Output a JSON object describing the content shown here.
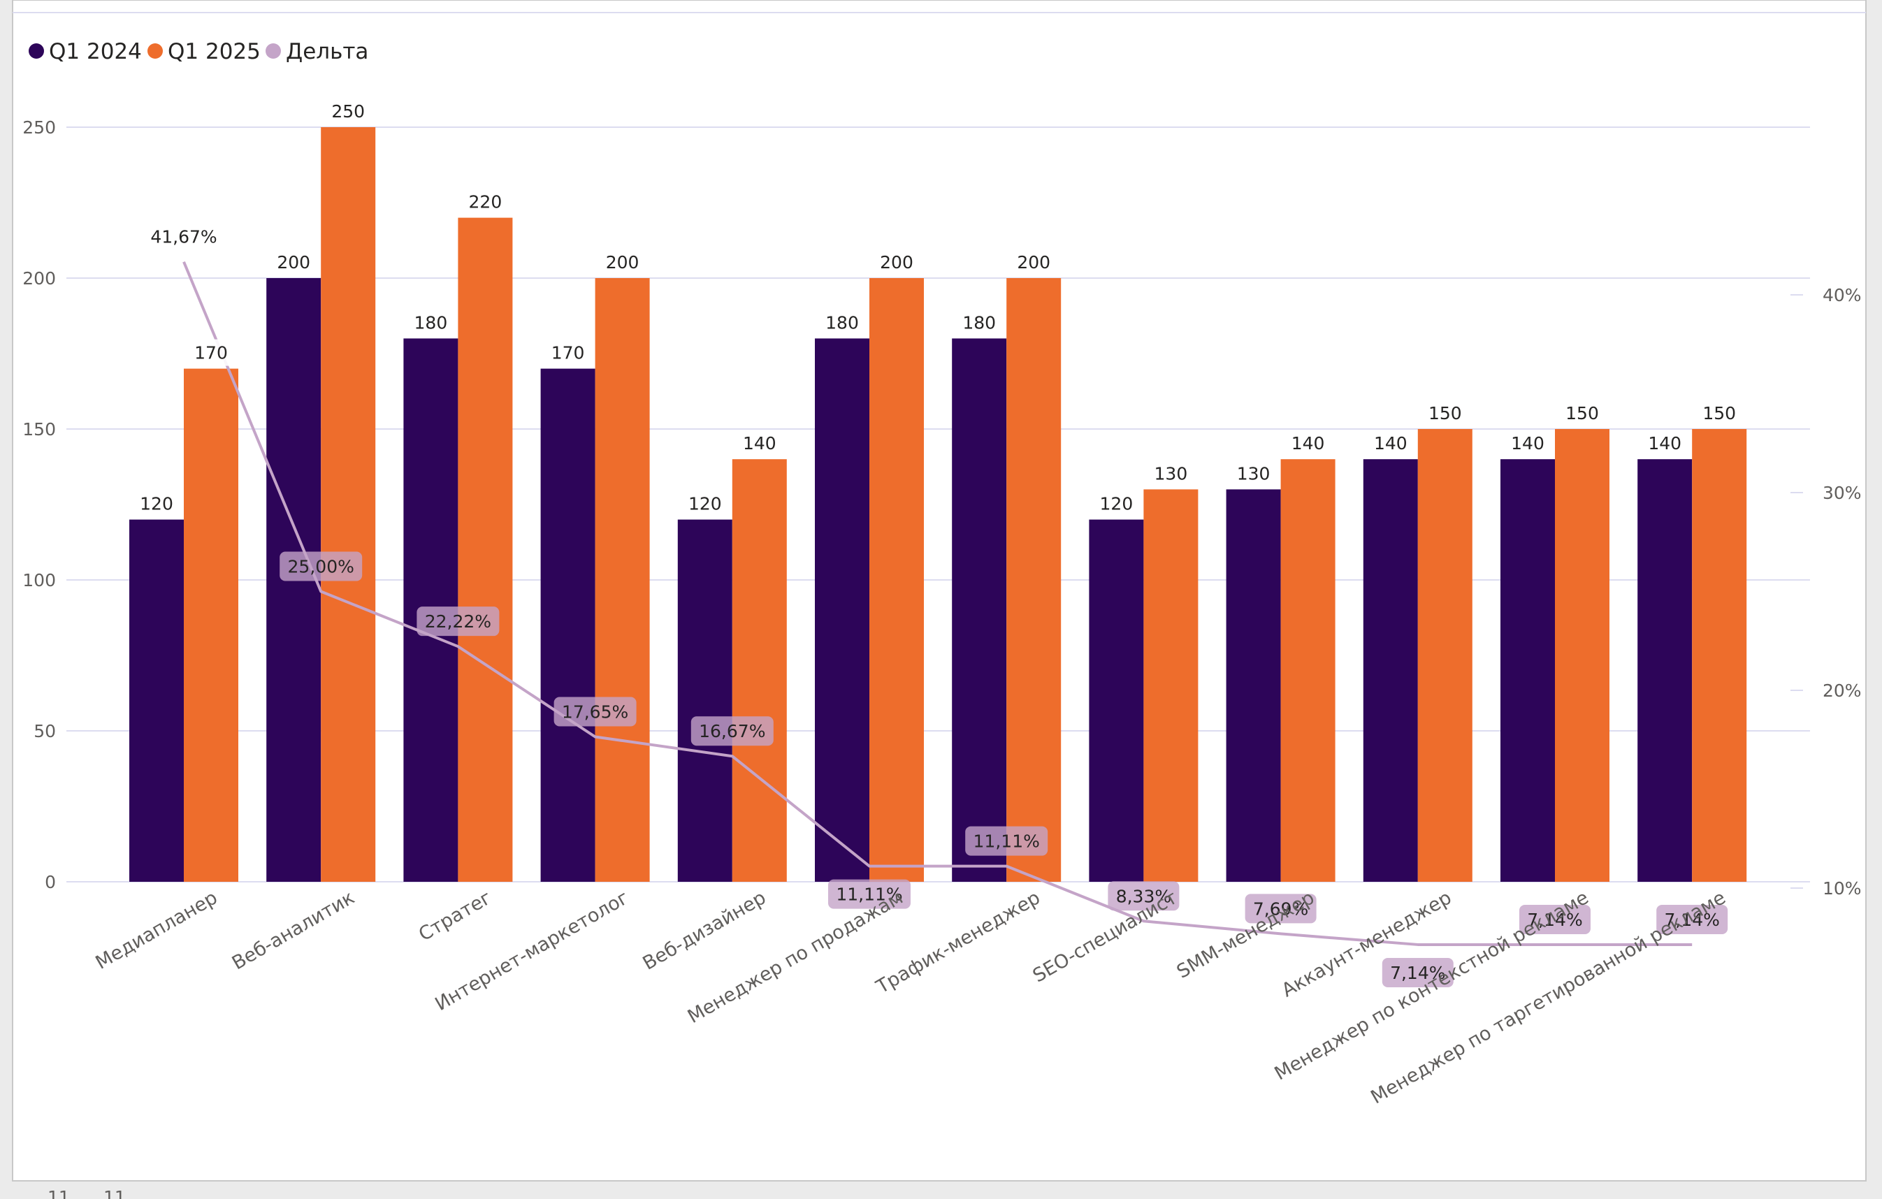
{
  "legend": {
    "q1_2024": "Q1 2024",
    "q1_2025": "Q1 2025",
    "delta": "Дельта"
  },
  "footer": {
    "left_text": "11",
    "right_text": "11"
  },
  "colors": {
    "q1_2024": "#2d0559",
    "q1_2025": "#ee6d2c",
    "delta": "#c4a4c8",
    "grid": "#dcdcf0"
  },
  "chart_data": {
    "type": "bar",
    "title": "",
    "categories": [
      "Медиапланер",
      "Веб-аналитик",
      "Стратег",
      "Интернет-маркетолог",
      "Веб-дизайнер",
      "Менеджер по продажам",
      "Трафик-менеджер",
      "SEO-специалист",
      "SMM-менеджер",
      "Аккаунт-менеджер",
      "Менеджер по контекстной рекламе",
      "Менеджер по таргетированной рекламе"
    ],
    "series": [
      {
        "name": "Q1 2024",
        "values": [
          120,
          200,
          180,
          170,
          120,
          180,
          180,
          120,
          130,
          140,
          140,
          140
        ]
      },
      {
        "name": "Q1 2025",
        "values": [
          170,
          250,
          220,
          200,
          140,
          200,
          200,
          130,
          140,
          150,
          150,
          150
        ]
      }
    ],
    "delta": {
      "name": "Дельта",
      "type": "line",
      "values": [
        41.67,
        25.0,
        22.22,
        17.65,
        16.67,
        11.11,
        11.11,
        8.33,
        7.69,
        7.14,
        7.14,
        7.14
      ],
      "labels": [
        "41,67%",
        "25,00%",
        "22,22%",
        "17,65%",
        "16,67%",
        "11,11%",
        "11,11%",
        "8,33%",
        "7,69%",
        "7,14%",
        "7,14%",
        "7,14%"
      ],
      "label_side": [
        "above",
        "above",
        "above",
        "above",
        "above",
        "below",
        "above",
        "above",
        "above",
        "below",
        "above",
        "above"
      ]
    },
    "y_left": {
      "ylim": [
        0,
        250
      ],
      "ticks": [
        "0",
        "50",
        "100",
        "150",
        "200",
        "250"
      ],
      "tick_values": [
        0,
        50,
        100,
        150,
        200,
        250
      ]
    },
    "y_right": {
      "ticks": [
        "10%",
        "20%",
        "30%",
        "40%"
      ],
      "tick_values": [
        10,
        20,
        30,
        40
      ]
    },
    "xlabel": "",
    "ylabel": "",
    "legend_position": "top-left",
    "grid": true
  }
}
